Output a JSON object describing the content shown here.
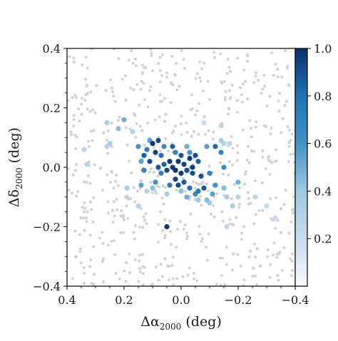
{
  "chart_data": {
    "type": "scatter",
    "xlabel_main": "Δα",
    "xlabel_sub": "2000",
    "xlabel_unit": " (deg)",
    "ylabel_main": "Δδ",
    "ylabel_sub": "2000",
    "ylabel_unit": " (deg)",
    "xlim": [
      0.4,
      -0.4
    ],
    "ylim": [
      -0.4,
      0.4
    ],
    "x_ticks": [
      0.4,
      0.2,
      0.0,
      -0.2,
      -0.4
    ],
    "x_tick_labels": [
      "0.4",
      "0.2",
      "0.0",
      "−0.2",
      "−0.4"
    ],
    "y_ticks": [
      -0.4,
      -0.2,
      0.0,
      0.2,
      0.4
    ],
    "y_tick_labels": [
      "−0.4",
      "−0.2",
      "0.0",
      "0.2",
      "0.4"
    ],
    "grid": false,
    "colorbar": {
      "range": [
        0.0,
        1.0
      ],
      "ticks": [
        0.2,
        0.4,
        0.6,
        0.8,
        1.0
      ],
      "tick_labels": [
        "0.2",
        "0.4",
        "0.6",
        "0.8",
        "1.0"
      ],
      "colormap": "Blues",
      "low_color": "#dbe9f6",
      "high_color": "#08306b"
    },
    "background_color": "#d3d3d3",
    "background_count": 600,
    "members": [
      {
        "x": 0.02,
        "y": -0.01,
        "p": 1.0
      },
      {
        "x": 0.01,
        "y": 0.02,
        "p": 0.98
      },
      {
        "x": 0.03,
        "y": 0.0,
        "p": 0.95
      },
      {
        "x": 0.0,
        "y": -0.02,
        "p": 0.97
      },
      {
        "x": -0.01,
        "y": 0.01,
        "p": 0.93
      },
      {
        "x": 0.04,
        "y": 0.02,
        "p": 0.96
      },
      {
        "x": -0.02,
        "y": -0.01,
        "p": 0.9
      },
      {
        "x": 0.05,
        "y": -0.01,
        "p": 0.92
      },
      {
        "x": -0.03,
        "y": 0.03,
        "p": 0.95
      },
      {
        "x": 0.0,
        "y": 0.04,
        "p": 0.88
      },
      {
        "x": -0.04,
        "y": -0.02,
        "p": 0.9
      },
      {
        "x": 0.02,
        "y": -0.04,
        "p": 0.94
      },
      {
        "x": 0.06,
        "y": 0.01,
        "p": 0.85
      },
      {
        "x": -0.01,
        "y": -0.05,
        "p": 0.87
      },
      {
        "x": 0.09,
        "y": 0.05,
        "p": 0.95
      },
      {
        "x": 0.1,
        "y": 0.08,
        "p": 0.98
      },
      {
        "x": 0.11,
        "y": 0.02,
        "p": 0.9
      },
      {
        "x": 0.13,
        "y": 0.04,
        "p": 0.85
      },
      {
        "x": 0.08,
        "y": 0.09,
        "p": 0.92
      },
      {
        "x": 0.07,
        "y": 0.04,
        "p": 0.8
      },
      {
        "x": 0.12,
        "y": 0.06,
        "p": 0.75
      },
      {
        "x": -0.05,
        "y": 0.04,
        "p": 0.9
      },
      {
        "x": -0.06,
        "y": 0.02,
        "p": 0.85
      },
      {
        "x": -0.07,
        "y": -0.03,
        "p": 0.9
      },
      {
        "x": -0.08,
        "y": -0.07,
        "p": 0.88
      },
      {
        "x": -0.03,
        "y": -0.07,
        "p": 0.8
      },
      {
        "x": -0.1,
        "y": -0.02,
        "p": 0.7
      },
      {
        "x": -0.05,
        "y": -0.09,
        "p": 0.65
      },
      {
        "x": 0.04,
        "y": -0.06,
        "p": 0.75
      },
      {
        "x": 0.07,
        "y": -0.02,
        "p": 0.7
      },
      {
        "x": 0.09,
        "y": -0.05,
        "p": 0.6
      },
      {
        "x": 0.13,
        "y": -0.01,
        "p": 0.7
      },
      {
        "x": 0.14,
        "y": 0.02,
        "p": 0.55
      },
      {
        "x": 0.15,
        "y": 0.07,
        "p": 0.6
      },
      {
        "x": -0.12,
        "y": 0.07,
        "p": 0.82
      },
      {
        "x": -0.14,
        "y": 0.05,
        "p": 0.7
      },
      {
        "x": -0.09,
        "y": 0.07,
        "p": 0.55
      },
      {
        "x": -0.03,
        "y": 0.05,
        "p": 0.6
      },
      {
        "x": 0.06,
        "y": 0.07,
        "p": 0.65
      },
      {
        "x": 0.02,
        "y": 0.05,
        "p": 0.7
      },
      {
        "x": -0.15,
        "y": 0.0,
        "p": 0.65
      },
      {
        "x": -0.2,
        "y": -0.05,
        "p": 0.5
      },
      {
        "x": -0.12,
        "y": -0.06,
        "p": 0.6
      },
      {
        "x": -0.11,
        "y": -0.09,
        "p": 0.55
      },
      {
        "x": -0.09,
        "y": -0.11,
        "p": 0.45
      },
      {
        "x": -0.06,
        "y": -0.11,
        "p": 0.4
      },
      {
        "x": -0.02,
        "y": -0.1,
        "p": 0.5
      },
      {
        "x": 0.0,
        "y": -0.08,
        "p": 0.45
      },
      {
        "x": 0.05,
        "y": -0.09,
        "p": 0.35
      },
      {
        "x": 0.1,
        "y": -0.07,
        "p": 0.45
      },
      {
        "x": 0.12,
        "y": -0.08,
        "p": 0.3
      },
      {
        "x": 0.14,
        "y": -0.06,
        "p": 0.55
      },
      {
        "x": 0.05,
        "y": -0.2,
        "p": 0.98
      },
      {
        "x": 0.22,
        "y": 0.13,
        "p": 0.45
      },
      {
        "x": 0.2,
        "y": 0.16,
        "p": 0.5
      },
      {
        "x": 0.26,
        "y": 0.15,
        "p": 0.35
      },
      {
        "x": 0.17,
        "y": 0.12,
        "p": 0.3
      },
      {
        "x": 0.25,
        "y": 0.08,
        "p": 0.35
      },
      {
        "x": 0.26,
        "y": 0.07,
        "p": 0.3
      },
      {
        "x": 0.34,
        "y": 0.06,
        "p": 0.25
      },
      {
        "x": 0.33,
        "y": 0.01,
        "p": 0.3
      },
      {
        "x": 0.19,
        "y": -0.07,
        "p": 0.35
      },
      {
        "x": 0.19,
        "y": -0.1,
        "p": 0.25
      },
      {
        "x": 0.15,
        "y": -0.13,
        "p": 0.28
      },
      {
        "x": -0.14,
        "y": 0.14,
        "p": 0.25
      },
      {
        "x": -0.14,
        "y": 0.09,
        "p": 0.35
      },
      {
        "x": -0.15,
        "y": 0.08,
        "p": 0.3
      },
      {
        "x": -0.17,
        "y": 0.08,
        "p": 0.25
      },
      {
        "x": -0.15,
        "y": -0.07,
        "p": 0.45
      },
      {
        "x": -0.16,
        "y": -0.1,
        "p": 0.35
      },
      {
        "x": -0.1,
        "y": -0.12,
        "p": 0.4
      },
      {
        "x": -0.2,
        "y": -0.1,
        "p": 0.3
      },
      {
        "x": -0.18,
        "y": -0.13,
        "p": 0.35
      },
      {
        "x": -0.26,
        "y": -0.1,
        "p": 0.25
      },
      {
        "x": -0.3,
        "y": -0.13,
        "p": 0.22
      },
      {
        "x": -0.33,
        "y": -0.17,
        "p": 0.2
      },
      {
        "x": -0.16,
        "y": -0.2,
        "p": 0.25
      },
      {
        "x": -0.08,
        "y": 0.15,
        "p": 0.2
      },
      {
        "x": 0.11,
        "y": 0.09,
        "p": 0.55
      },
      {
        "x": -0.06,
        "y": -0.08,
        "p": 0.75
      },
      {
        "x": 0.03,
        "y": 0.07,
        "p": 0.85
      },
      {
        "x": -0.04,
        "y": 0.0,
        "p": 0.95
      },
      {
        "x": 0.01,
        "y": -0.06,
        "p": 0.92
      },
      {
        "x": 0.08,
        "y": 0.0,
        "p": 0.88
      },
      {
        "x": -0.02,
        "y": 0.07,
        "p": 0.5
      }
    ]
  }
}
